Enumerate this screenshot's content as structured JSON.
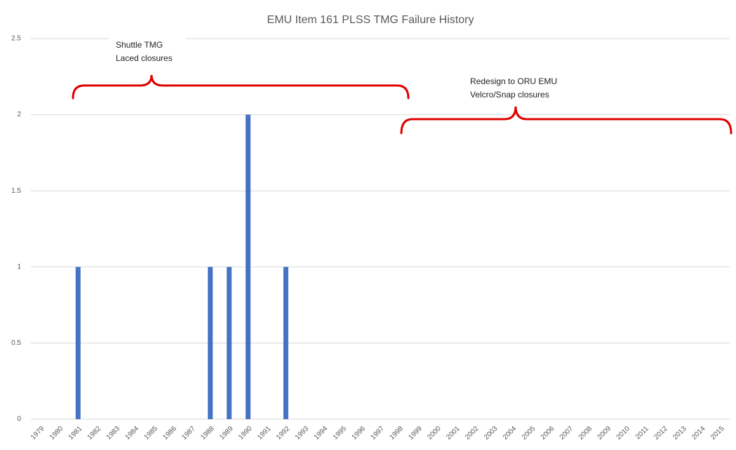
{
  "chart_data": {
    "type": "bar",
    "title": "EMU Item 161 PLSS TMG Failure History",
    "categories": [
      "1979",
      "1980",
      "1981",
      "1982",
      "1983",
      "1984",
      "1985",
      "1986",
      "1987",
      "1988",
      "1989",
      "1990",
      "1991",
      "1992",
      "1993",
      "1994",
      "1995",
      "1996",
      "1997",
      "1998",
      "1999",
      "2000",
      "2001",
      "2002",
      "2003",
      "2004",
      "2005",
      "2006",
      "2007",
      "2008",
      "2009",
      "2010",
      "2011",
      "2012",
      "2013",
      "2014",
      "2015"
    ],
    "values": [
      0,
      0,
      1,
      0,
      0,
      0,
      0,
      0,
      0,
      1,
      1,
      2,
      0,
      1,
      0,
      0,
      0,
      0,
      0,
      0,
      0,
      0,
      0,
      0,
      0,
      0,
      0,
      0,
      0,
      0,
      0,
      0,
      0,
      0,
      0,
      0,
      0
    ],
    "color": "#4472c4",
    "ylim": [
      0,
      2.5
    ],
    "yticks": [
      0,
      0.5,
      1,
      1.5,
      2,
      2.5
    ],
    "grid": true,
    "annotations": [
      "Shuttle TMG",
      "Laced closures",
      "Redesign to ORU EMU",
      "Velcro/Snap closures"
    ]
  }
}
